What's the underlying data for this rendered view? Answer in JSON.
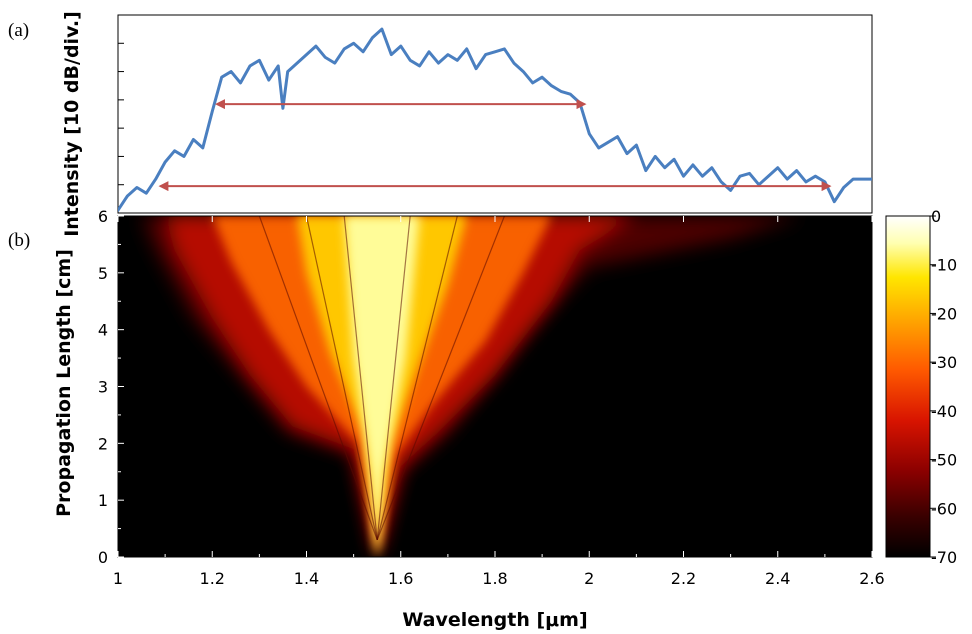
{
  "panel_labels": {
    "a": "(a)",
    "b": "(b)"
  },
  "colors": {
    "spectrum_line": "#4a7fc0",
    "arrow": "#c0504d",
    "heatmap_background": "#000000"
  },
  "chart_data": [
    {
      "type": "line",
      "panel": "(a)",
      "ylabel": "Intensity [10 dB/div.]",
      "xlim": [
        1.0,
        2.6
      ],
      "ylim": [
        0,
        7
      ],
      "y_tick_count": 8,
      "series": [
        {
          "x": [
            1.0,
            1.02,
            1.04,
            1.06,
            1.08,
            1.1,
            1.12,
            1.14,
            1.16,
            1.18,
            1.2,
            1.22,
            1.24,
            1.26,
            1.28,
            1.3,
            1.32,
            1.34,
            1.35,
            1.36,
            1.38,
            1.4,
            1.42,
            1.44,
            1.46,
            1.48,
            1.5,
            1.52,
            1.54,
            1.56,
            1.58,
            1.6,
            1.62,
            1.64,
            1.66,
            1.68,
            1.7,
            1.72,
            1.74,
            1.76,
            1.78,
            1.8,
            1.82,
            1.84,
            1.86,
            1.88,
            1.9,
            1.92,
            1.94,
            1.96,
            1.98,
            2.0,
            2.02,
            2.04,
            2.06,
            2.08,
            2.1,
            2.12,
            2.14,
            2.16,
            2.18,
            2.2,
            2.22,
            2.24,
            2.26,
            2.28,
            2.3,
            2.32,
            2.34,
            2.36,
            2.38,
            2.4,
            2.42,
            2.44,
            2.46,
            2.48,
            2.5,
            2.52,
            2.54,
            2.56,
            2.58,
            2.6
          ],
          "y": [
            0.1,
            0.6,
            0.9,
            0.7,
            1.2,
            1.8,
            2.2,
            2.0,
            2.6,
            2.3,
            3.6,
            4.8,
            5.0,
            4.6,
            5.2,
            5.4,
            4.7,
            5.2,
            3.7,
            5.0,
            5.3,
            5.6,
            5.9,
            5.5,
            5.3,
            5.8,
            6.0,
            5.7,
            6.2,
            6.5,
            5.6,
            5.9,
            5.4,
            5.2,
            5.7,
            5.3,
            5.6,
            5.4,
            5.8,
            5.1,
            5.6,
            5.7,
            5.8,
            5.3,
            5.0,
            4.6,
            4.8,
            4.5,
            4.3,
            4.2,
            3.9,
            2.8,
            2.3,
            2.5,
            2.7,
            2.1,
            2.4,
            1.5,
            2.0,
            1.6,
            1.9,
            1.3,
            1.7,
            1.3,
            1.6,
            1.1,
            0.8,
            1.3,
            1.4,
            1.0,
            1.3,
            1.6,
            1.2,
            1.5,
            1.1,
            1.3,
            1.1,
            0.4,
            0.9,
            1.2,
            1.2,
            1.2
          ]
        }
      ],
      "annotations": [
        {
          "type": "double-arrow",
          "x": [
            1.21,
            1.99
          ],
          "y": 3.85
        },
        {
          "type": "double-arrow",
          "x": [
            1.09,
            2.51
          ],
          "y": 0.95
        }
      ]
    },
    {
      "type": "heatmap",
      "panel": "(b)",
      "xlabel": "Wavelength [μm]",
      "ylabel": "Propagation Length [cm]",
      "xlim": [
        1.0,
        2.6
      ],
      "ylim": [
        0,
        6
      ],
      "x_ticks": [
        "1",
        "1.2",
        "1.4",
        "1.6",
        "1.8",
        "2",
        "2.2",
        "2.4",
        "2.6"
      ],
      "y_ticks": [
        "0",
        "1",
        "2",
        "3",
        "4",
        "5",
        "6"
      ],
      "center_wavelength": 1.55,
      "colorbar": {
        "range": [
          -70,
          0
        ],
        "ticks": [
          "0",
          "-10",
          "-20",
          "-30",
          "-40",
          "-50",
          "-60",
          "-70"
        ],
        "colormap": [
          "#000000",
          "#3a0000",
          "#8a0000",
          "#d81400",
          "#ff5a00",
          "#ffa800",
          "#ffe600",
          "#ffffb0",
          "#ffffff"
        ]
      }
    }
  ]
}
